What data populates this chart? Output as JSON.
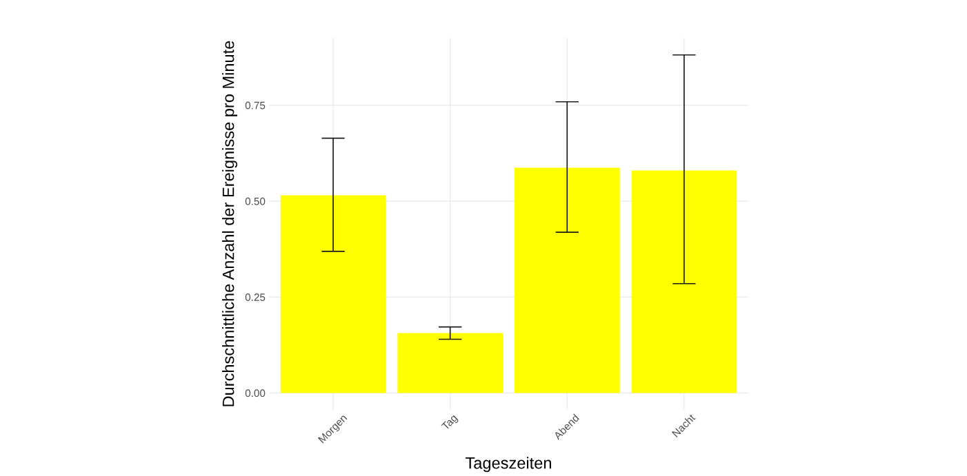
{
  "chart_data": {
    "type": "bar",
    "xlabel": "Tageszeiten",
    "ylabel": "Durchschnittliche Anzahl der Ereignisse pro Minute",
    "categories": [
      "Morgen",
      "Tag",
      "Abend",
      "Nacht"
    ],
    "values": [
      0.515,
      0.156,
      0.587,
      0.58
    ],
    "errors": [
      [
        0.369,
        0.664
      ],
      [
        0.14,
        0.172
      ],
      [
        0.419,
        0.759
      ],
      [
        0.285,
        0.881
      ]
    ],
    "color": "#ffff00",
    "ylim": [
      -0.044,
      0.925
    ],
    "yticks": [
      {
        "value": 0,
        "label": "0.00"
      },
      {
        "value": 0.25,
        "label": "0.25"
      },
      {
        "value": 0.5,
        "label": "0.50"
      },
      {
        "value": 0.75,
        "label": "0.75"
      }
    ],
    "grid": true
  }
}
